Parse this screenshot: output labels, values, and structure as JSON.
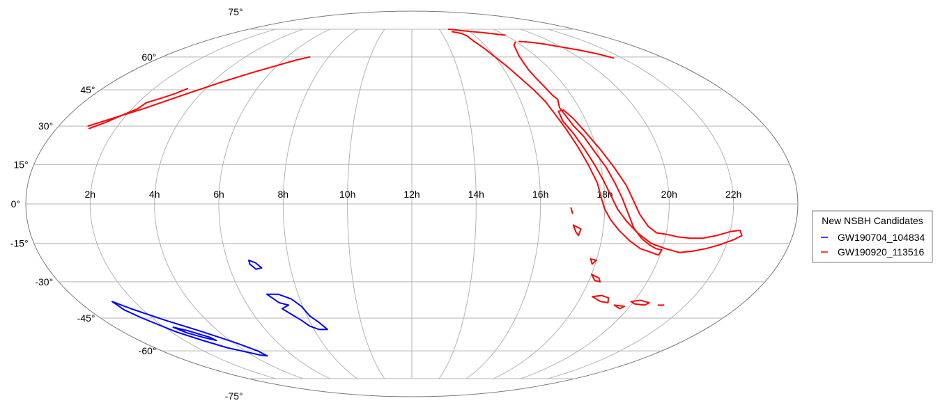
{
  "chart_data": {
    "type": "map",
    "projection": "mollweide",
    "grid": true,
    "ra_tick_labels": [
      "2h",
      "4h",
      "6h",
      "8h",
      "10h",
      "12h",
      "14h",
      "16h",
      "18h",
      "20h",
      "22h"
    ],
    "dec_tick_labels": [
      {
        "value": 75,
        "label": "75°"
      },
      {
        "value": 60,
        "label": "60°"
      },
      {
        "value": 45,
        "label": "45°"
      },
      {
        "value": 30,
        "label": "30°"
      },
      {
        "value": 15,
        "label": "15°"
      },
      {
        "value": 0,
        "label": "0°"
      },
      {
        "value": -15,
        "label": "-15°"
      },
      {
        "value": -30,
        "label": "-30°"
      },
      {
        "value": -45,
        "label": "-45°"
      },
      {
        "value": -60,
        "label": "-60°"
      },
      {
        "value": -75,
        "label": "-75°"
      }
    ],
    "legend": {
      "title": "New NSBH Candidates",
      "placement": "right",
      "entries": [
        {
          "name": "GW190704_104834",
          "color": "#0000ff"
        },
        {
          "name": "GW190920_113516",
          "color": "#ff0000"
        }
      ]
    },
    "series": [
      {
        "name": "GW190704_104834",
        "color": "#0000ff",
        "contours": [
          [
            [
              1.2,
              -38.0
            ],
            [
              1.6,
              -41.0
            ],
            [
              2.4,
              -46.0
            ],
            [
              3.3,
              -51.0
            ],
            [
              4.1,
              -56.0
            ],
            [
              4.6,
              -60.0
            ],
            [
              4.7,
              -62.5
            ],
            [
              4.4,
              -62.0
            ],
            [
              3.4,
              -58.5
            ],
            [
              2.8,
              -55.0
            ],
            [
              2.2,
              -51.0
            ],
            [
              1.6,
              -45.0
            ],
            [
              1.3,
              -41.5
            ],
            [
              1.2,
              -38.0
            ]
          ],
          [
            [
              2.35,
              -49.0
            ],
            [
              2.75,
              -50.5
            ],
            [
              3.3,
              -53.5
            ],
            [
              3.4,
              -55.0
            ],
            [
              3.0,
              -53.5
            ],
            [
              2.6,
              -51.5
            ],
            [
              2.35,
              -49.0
            ]
          ],
          [
            [
              6.7,
              -21.5
            ],
            [
              6.9,
              -22.5
            ],
            [
              7.05,
              -24.5
            ],
            [
              6.85,
              -25.0
            ],
            [
              6.7,
              -23.0
            ],
            [
              6.7,
              -21.5
            ]
          ],
          [
            [
              6.9,
              -35.0
            ],
            [
              7.3,
              -35.0
            ],
            [
              7.7,
              -37.0
            ],
            [
              7.95,
              -40.0
            ],
            [
              8.1,
              -44.0
            ],
            [
              8.35,
              -47.0
            ],
            [
              8.55,
              -50.0
            ],
            [
              8.2,
              -50.0
            ],
            [
              7.9,
              -48.5
            ],
            [
              7.7,
              -46.0
            ],
            [
              7.45,
              -43.5
            ],
            [
              7.2,
              -41.0
            ],
            [
              7.5,
              -39.5
            ],
            [
              7.2,
              -38.5
            ],
            [
              6.9,
              -35.0
            ]
          ]
        ]
      },
      {
        "name": "GW190920_113516",
        "color": "#ff0000",
        "contours": [
          [
            [
              1.0,
              30.0
            ],
            [
              1.3,
              31.5
            ],
            [
              1.8,
              34.0
            ],
            [
              2.4,
              37.0
            ],
            [
              3.0,
              40.5
            ],
            [
              3.6,
              44.0
            ],
            [
              4.4,
              48.5
            ],
            [
              5.2,
              52.5
            ],
            [
              6.0,
              56.0
            ],
            [
              6.6,
              58.5
            ],
            [
              7.1,
              60.0
            ]
          ],
          [
            [
              1.1,
              29.0
            ],
            [
              1.5,
              31.5
            ],
            [
              2.0,
              35.5
            ],
            [
              2.2,
              37.0
            ],
            [
              2.3,
              39.5
            ],
            [
              2.7,
              41.5
            ],
            [
              3.05,
              43.5
            ],
            [
              3.3,
              45.5
            ]
          ],
          [
            [
              14.8,
              73.5
            ],
            [
              15.3,
              72.5
            ],
            [
              15.5,
              71.0
            ],
            [
              15.6,
              68.0
            ],
            [
              15.8,
              64.5
            ],
            [
              16.0,
              60.0
            ],
            [
              16.2,
              56.0
            ],
            [
              16.4,
              51.5
            ],
            [
              16.7,
              45.0
            ],
            [
              16.9,
              40.0
            ],
            [
              17.0,
              36.0
            ],
            [
              17.2,
              29.0
            ],
            [
              17.4,
              22.0
            ],
            [
              17.6,
              15.0
            ],
            [
              17.8,
              8.0
            ],
            [
              17.9,
              2.0
            ],
            [
              18.0,
              -2.0
            ],
            [
              18.2,
              -6.0
            ],
            [
              18.5,
              -10.0
            ],
            [
              18.9,
              -14.0
            ],
            [
              19.3,
              -17.0
            ],
            [
              19.7,
              -18.5
            ],
            [
              19.95,
              -19.5
            ],
            [
              20.0,
              -17.5
            ],
            [
              19.8,
              -17.0
            ],
            [
              19.55,
              -15.5
            ],
            [
              19.25,
              -13.0
            ],
            [
              18.95,
              -9.0
            ],
            [
              18.75,
              -4.0
            ],
            [
              18.55,
              2.0
            ],
            [
              18.35,
              8.0
            ],
            [
              18.15,
              14.0
            ],
            [
              17.9,
              20.0
            ],
            [
              17.7,
              26.0
            ],
            [
              17.5,
              30.0
            ],
            [
              17.4,
              33.5
            ],
            [
              17.3,
              37.5
            ],
            [
              17.4,
              41.0
            ],
            [
              17.3,
              42.5
            ],
            [
              17.2,
              46.0
            ],
            [
              17.1,
              50.0
            ],
            [
              17.05,
              54.0
            ],
            [
              17.1,
              57.0
            ],
            [
              17.2,
              60.5
            ],
            [
              17.4,
              63.5
            ],
            [
              17.6,
              66.0
            ],
            [
              17.9,
              67.5
            ]
          ],
          [
            [
              17.2,
              36.0
            ],
            [
              17.2,
              32.0
            ],
            [
              17.4,
              27.0
            ],
            [
              17.6,
              21.0
            ],
            [
              17.8,
              15.0
            ],
            [
              18.0,
              9.0
            ],
            [
              18.2,
              3.0
            ],
            [
              18.4,
              -2.0
            ],
            [
              18.7,
              -6.5
            ],
            [
              19.1,
              -11.0
            ],
            [
              19.6,
              -15.0
            ],
            [
              20.1,
              -17.0
            ],
            [
              20.6,
              -18.5
            ],
            [
              21.0,
              -18.0
            ],
            [
              21.4,
              -17.0
            ],
            [
              21.8,
              -15.5
            ],
            [
              22.2,
              -13.5
            ],
            [
              22.4,
              -12.0
            ],
            [
              22.3,
              -10.0
            ],
            [
              22.0,
              -10.5
            ],
            [
              21.6,
              -12.0
            ],
            [
              21.2,
              -13.0
            ],
            [
              20.8,
              -13.0
            ],
            [
              20.4,
              -12.5
            ],
            [
              20.0,
              -11.5
            ],
            [
              19.7,
              -11.0
            ],
            [
              19.4,
              -8.5
            ],
            [
              19.1,
              -4.0
            ],
            [
              18.9,
              1.0
            ],
            [
              18.7,
              7.0
            ],
            [
              18.4,
              14.0
            ],
            [
              18.1,
              21.0
            ],
            [
              17.8,
              28.0
            ],
            [
              17.6,
              33.0
            ],
            [
              17.4,
              36.5
            ],
            [
              17.2,
              36.0
            ]
          ],
          [
            [
              14.7,
              75.0
            ],
            [
              15.2,
              74.5
            ],
            [
              15.7,
              74.0
            ],
            [
              16.2,
              73.5
            ],
            [
              16.8,
              73.0
            ],
            [
              17.2,
              72.5
            ],
            [
              17.6,
              72.0
            ],
            [
              18.0,
              71.5
            ]
          ],
          [
            [
              18.2,
              68.0
            ],
            [
              18.8,
              67.5
            ],
            [
              19.4,
              66.5
            ],
            [
              20.0,
              65.0
            ],
            [
              20.6,
              63.5
            ],
            [
              21.2,
              61.5
            ],
            [
              21.6,
              59.5
            ]
          ],
          [
            [
              16.95,
              -1.5
            ],
            [
              17.0,
              -3.5
            ]
          ],
          [
            [
              17.05,
              -8.0
            ],
            [
              17.3,
              -9.5
            ],
            [
              17.25,
              -12.0
            ],
            [
              17.15,
              -10.5
            ],
            [
              17.05,
              -8.0
            ]
          ],
          [
            [
              17.8,
              -21.0
            ],
            [
              18.0,
              -21.5
            ],
            [
              17.9,
              -23.0
            ],
            [
              17.8,
              -21.0
            ]
          ],
          [
            [
              18.0,
              -27.0
            ],
            [
              18.3,
              -28.5
            ],
            [
              18.4,
              -30.0
            ],
            [
              18.2,
              -29.5
            ],
            [
              18.0,
              -27.0
            ]
          ],
          [
            [
              18.4,
              -36.0
            ],
            [
              18.7,
              -35.5
            ],
            [
              19.0,
              -36.5
            ],
            [
              19.1,
              -38.5
            ],
            [
              18.8,
              -38.0
            ],
            [
              18.6,
              -37.0
            ],
            [
              18.4,
              -36.0
            ]
          ],
          [
            [
              19.4,
              -39.5
            ],
            [
              19.8,
              -40.0
            ],
            [
              19.7,
              -41.0
            ],
            [
              19.4,
              -39.5
            ]
          ],
          [
            [
              19.9,
              -38.0
            ],
            [
              20.2,
              -37.5
            ],
            [
              20.6,
              -38.5
            ],
            [
              20.5,
              -39.5
            ],
            [
              20.1,
              -39.0
            ],
            [
              19.9,
              -38.0
            ]
          ],
          [
            [
              21.0,
              -39.5
            ],
            [
              21.2,
              -39.5
            ]
          ]
        ]
      }
    ]
  }
}
